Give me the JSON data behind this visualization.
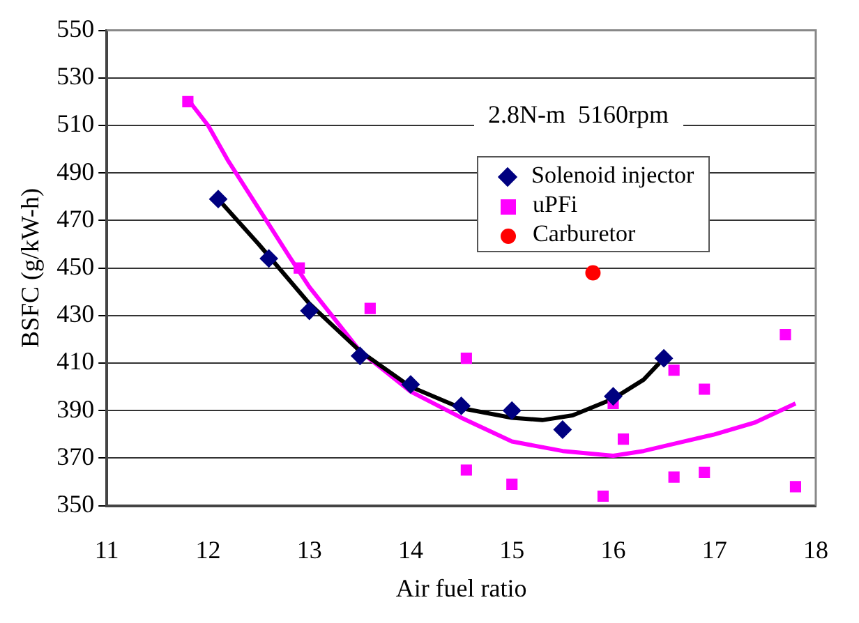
{
  "chart_data": {
    "type": "scatter",
    "xlabel": "Air fuel ratio",
    "ylabel": "BSFC (g/kW-h)",
    "xlim": [
      11,
      18
    ],
    "xticks": [
      11,
      12,
      13,
      14,
      15,
      16,
      17,
      18
    ],
    "ylim": [
      350,
      550
    ],
    "yticks": [
      350,
      370,
      390,
      410,
      430,
      450,
      470,
      490,
      510,
      530,
      550
    ],
    "grid": "y",
    "legend": "top right",
    "annotations": [
      "2.8N-m  5160rpm"
    ],
    "series": [
      {
        "name": "Solenoid injector",
        "type": "scatter",
        "marker": "diamond",
        "color": "#000080",
        "x": [
          12.1,
          12.6,
          13.0,
          13.5,
          14.0,
          14.5,
          15.0,
          15.5,
          16.0,
          16.5
        ],
        "values": [
          479,
          454,
          432,
          413,
          401,
          392,
          390,
          382,
          396,
          412
        ]
      },
      {
        "name": "uPFi",
        "type": "scatter",
        "marker": "square",
        "color": "#ff00ff",
        "x": [
          11.8,
          12.9,
          13.6,
          14.55,
          14.55,
          15.0,
          15.9,
          16.0,
          16.1,
          16.6,
          16.6,
          16.9,
          16.9,
          17.7,
          17.8
        ],
        "values": [
          520,
          450,
          433,
          412,
          365,
          359,
          354,
          393,
          378,
          407,
          362,
          399,
          364,
          422,
          358
        ]
      },
      {
        "name": "Carburetor",
        "type": "scatter",
        "marker": "circle",
        "color": "#ff0000",
        "x": [
          15.8
        ],
        "values": [
          448
        ]
      },
      {
        "type": "line",
        "marker": "none",
        "color": "#000000",
        "x": [
          12.1,
          12.5,
          13.0,
          13.5,
          14.0,
          14.5,
          15.0,
          15.3,
          15.6,
          16.0,
          16.3,
          16.5
        ],
        "values": [
          479,
          460,
          435,
          415,
          400,
          391,
          387,
          386,
          388,
          395,
          403,
          412
        ]
      },
      {
        "type": "line",
        "marker": "none",
        "color": "#ff00ff",
        "x": [
          11.8,
          12.0,
          12.2,
          12.5,
          12.8,
          13.0,
          13.5,
          14.0,
          14.5,
          15.0,
          15.5,
          16.0,
          16.3,
          16.6,
          17.0,
          17.4,
          17.8
        ],
        "values": [
          521,
          510,
          495,
          475,
          455,
          442,
          415,
          398,
          387,
          377,
          373,
          371,
          373,
          376,
          380,
          385,
          393
        ]
      }
    ]
  }
}
